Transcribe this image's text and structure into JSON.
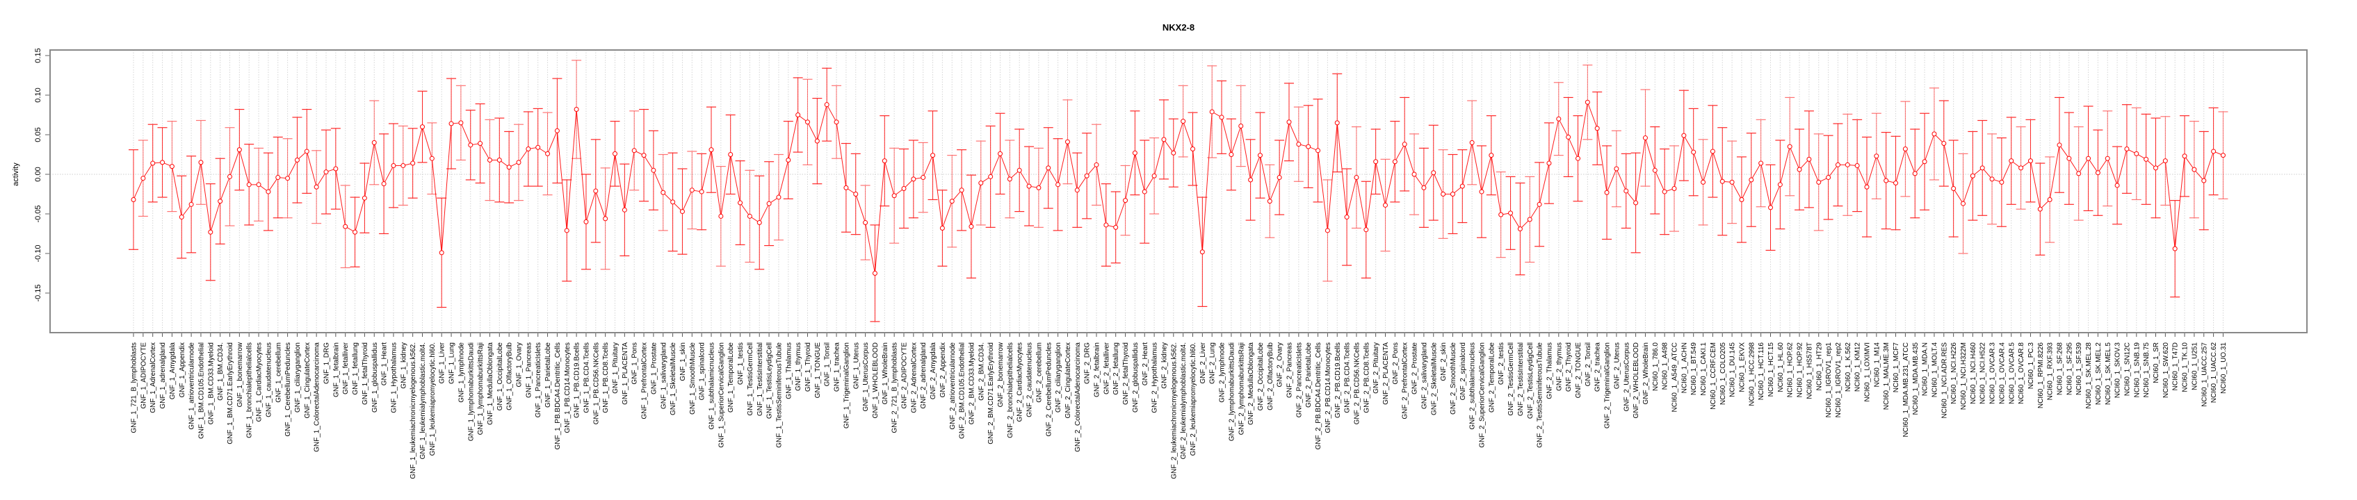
{
  "chart_data": {
    "type": "line",
    "title": "NKX2-8",
    "xlabel": "",
    "ylabel": "activity",
    "ylim": [
      -0.2,
      0.155
    ],
    "yticks": [
      "-0.15",
      "-0.10",
      "-0.05",
      "0.00",
      "0.05",
      "0.10",
      "0.15"
    ],
    "ytick_values": [
      -0.15,
      -0.1,
      -0.05,
      0.0,
      0.05,
      0.1,
      0.15
    ],
    "grid": "dotted vertical at each category, dotted horizontal at 0",
    "series_color": "#ff0000",
    "categories": [
      "GNF_1_721_B_lymphoblasts",
      "GNF_1_ADIPOCYTE",
      "GNF_1_AdrenalCortex",
      "GNF_1_adrenalgland",
      "GNF_1_Amygdala",
      "GNF_1_Appendix",
      "GNF_1_atrioventricularnode",
      "GNF_1_BM.CD105.Endothelial",
      "GNF_1_BM.CD33.Myeloid",
      "GNF_1_BM.CD34.",
      "GNF_1_BM.CD71.EarlyErythroid",
      "GNF_1_bonemarrow",
      "GNF_1_bronchialepithelialcells",
      "GNF_1_CardiacMyocytes",
      "GNF_1_caudatenucleus",
      "GNF_1_cerebellum",
      "GNF_1_CerebellumPeduncles",
      "GNF_1_ciliaryganglion",
      "GNF_1_CingulateCortex",
      "GNF_1_ColorectalAdenocarcinoma",
      "GNF_1_DRG",
      "GNF_1_fetalbrain",
      "GNF_1_fetalliver",
      "GNF_1_fetallung",
      "GNF_1_fetalThyroid",
      "GNF_1_globuspallidus",
      "GNF_1_Heart",
      "GNF_1_Hypothalamus",
      "GNF_1_kidney",
      "GNF_1_leukemiachronicmyelogenous.k562.",
      "GNF_1_leukemialymphoblastic.molt4.",
      "GNF_1_leukemiapromyelocytic.hl60.",
      "GNF_1_Liver",
      "GNF_1_Lung",
      "GNF_1_lymphnode",
      "GNF_1_lymphomaburkittsDaudi",
      "GNF_1_lymphomaburkittsRaji",
      "GNF_1_MedullaOblongata",
      "GNF_1_OccipitalLobe",
      "GNF_1_OlfactoryBulb",
      "GNF_1_Ovary",
      "GNF_1_Pancreas",
      "GNF_1_PancreaticIslets",
      "GNF_1_ParietalLobe",
      "GNF_1_PB.BDCA4.Dentritic_Cells",
      "GNF_1_PB.CD14.Monocytes",
      "GNF_1_PB.CD19.Bcells",
      "GNF_1_PB.CD4.Tcells",
      "GNF_1_PB.CD56.NKCells",
      "GNF_1_PB.CD8.Tcells",
      "GNF_1_Pituitary",
      "GNF_1_PLACENTA",
      "GNF_1_Pons",
      "GNF_1_PrefrontalCortex",
      "GNF_1_Prostate",
      "GNF_1_salivarygland",
      "GNF_1_SkeletalMuscle",
      "GNF_1_skin",
      "GNF_1_SmoothMuscle",
      "GNF_1_spinalcord",
      "GNF_1_subthalamicnucleus",
      "GNF_1_SuperiorCervicalGanglion",
      "GNF_1_TemporalLobe",
      "GNF_1_testis",
      "GNF_1_TestisGermCell",
      "GNF_1_TestisInterstitial",
      "GNF_1_TestisLeydigCell",
      "GNF_1_TestisSeminiferousTubule",
      "GNF_1_Thalamus",
      "GNF_1_thymus",
      "GNF_1_Thyroid",
      "GNF_1_TONGUE",
      "GNF_1_Tonsil",
      "GNF_1_trachea",
      "GNF_1_TrigeminalGanglion",
      "GNF_1_Uterus",
      "GNF_1_UterusCorpus",
      "GNF_1_WHOLEBLOOD",
      "GNF_1_WholeBrain",
      "GNF_2_721_B_lymphoblasts",
      "GNF_2_ADIPOCYTE",
      "GNF_2_AdrenalCortex",
      "GNF_2_adrenalgland",
      "GNF_2_Amygdala",
      "GNF_2_Appendix",
      "GNF_2_atrioventricularnode",
      "GNF_2_BM.CD105.Endothelial",
      "GNF_2_BM.CD33.Myeloid",
      "GNF_2_BM.CD34.",
      "GNF_2_BM.CD71.EarlyErythroid",
      "GNF_2_bonemarrow",
      "GNF_2_bronchialepithelialcells",
      "GNF_2_CardiacMyocytes",
      "GNF_2_caudatenucleus",
      "GNF_2_cerebellum",
      "GNF_2_CerebellumPeduncles",
      "GNF_2_ciliaryganglion",
      "GNF_2_CingulateCortex",
      "GNF_2_ColorectalAdenocarcinoma",
      "GNF_2_DRG",
      "GNF_2_fetalbrain",
      "GNF_2_fetalliver",
      "GNF_2_fetallung",
      "GNF_2_fetalThyroid",
      "GNF_2_globuspallidus",
      "GNF_2_Heart",
      "GNF_2_Hypothalamus",
      "GNF_2_kidney",
      "GNF_2_leukemiachronicmyelogenous.k562.",
      "GNF_2_leukemialymphoblastic.molt4.",
      "GNF_2_leukemiapromyelocytic.hl60.",
      "GNF_2_Liver",
      "GNF_2_Lung",
      "GNF_2_lymphnode",
      "GNF_2_lymphomaburkittsDaudi",
      "GNF_2_lymphomaburkittsRaji",
      "GNF_2_MedullaOblongata",
      "GNF_2_OccipitalLobe",
      "GNF_2_OlfactoryBulb",
      "GNF_2_Ovary",
      "GNF_2_Pancreas",
      "GNF_2_PancreaticIslets",
      "GNF_2_ParietalLobe",
      "GNF_2_PB.BDCA4.Dentritic_Cells",
      "GNF_2_PB.CD14.Monocytes",
      "GNF_2_PB.CD19.Bcells",
      "GNF_2_PB.CD4.Tcells",
      "GNF_2_PB.CD56.NKCells",
      "GNF_2_PB.CD8.Tcells",
      "GNF_2_Pituitary",
      "GNF_2_PLACENTA",
      "GNF_2_Pons",
      "GNF_2_PrefrontalCortex",
      "GNF_2_Prostate",
      "GNF_2_salivarygland",
      "GNF_2_SkeletalMuscle",
      "GNF_2_skin",
      "GNF_2_SmoothMuscle",
      "GNF_2_spinalcord",
      "GNF_2_subthalamicnucleus",
      "GNF_2_SuperiorCervicalGanglion",
      "GNF_2_TemporalLobe",
      "GNF_2_testis",
      "GNF_2_TestisGermCell",
      "GNF_2_TestisInterstitial",
      "GNF_2_TestisLeydigCell",
      "GNF_2_TestisSeminiferousTubule",
      "GNF_2_Thalamus",
      "GNF_2_thymus",
      "GNF_2_Thyroid",
      "GNF_2_TONGUE",
      "GNF_2_Tonsil",
      "GNF_2_trachea",
      "GNF_2_TrigeminalGanglion",
      "GNF_2_Uterus",
      "GNF_2_UterusCorpus",
      "GNF_2_WHOLEBLOOD",
      "GNF_2_WholeBrain",
      "NCI60_1_786.0",
      "NCI60_1_A498",
      "NCI60_1_A549_ATCC",
      "NCI60_1_ACHN",
      "NCI60_1_BT.549",
      "NCI60_1_CAKI.1",
      "NCI60_1_CCRF.CEM",
      "NCI60_1_COLO205",
      "NCI60_1_DU.145",
      "NCI60_1_EKVX",
      "NCI60_1_HCC.2998",
      "NCI60_1_HCT.116",
      "NCI60_1_HCT.15",
      "NCI60_1_HL.60",
      "NCI60_1_HOP.62",
      "NCI60_1_HOP.92",
      "NCI60_1_HS578T",
      "NCI60_1_HT29",
      "NCI60_1_IGROV1_rep1",
      "NCI60_1_IGROV1_rep2",
      "NCI60_1_K.562",
      "NCI60_1_KM12",
      "NCI60_1_LOXIMVI",
      "NCI60_1_M14",
      "NCI60_1_MALME.3M",
      "NCI60_1_MCF7",
      "NCI60_1_MDA.MB.231_ATCC",
      "NCI60_1_MDA.MB.435",
      "NCI60_1_MDA.N",
      "NCI60_1_MOLT.4",
      "NCI60_1_NCI.ADR.RES",
      "NCI60_1_NCI.H226",
      "NCI60_1_NCI.H322M",
      "NCI60_1_NCI.H460",
      "NCI60_1_NCI.H522",
      "NCI60_1_OVCAR.3",
      "NCI60_1_OVCAR.4",
      "NCI60_1_OVCAR.5",
      "NCI60_1_OVCAR.8",
      "NCI60_1_PC.3",
      "NCI60_1_RPMI.8226",
      "NCI60_1_RXF.393",
      "NCI60_1_SF.268",
      "NCI60_1_SF.295",
      "NCI60_1_SF.539",
      "NCI60_1_SK.MEL.28",
      "NCI60_1_SK.MEL.2",
      "NCI60_1_SK.MEL.5",
      "NCI60_1_SKOV.3",
      "NCI60_1_SN12C",
      "NCI60_1_SNB.19",
      "NCI60_1_SNB.75",
      "NCI60_1_SR",
      "NCI60_1_SW.620",
      "NCI60_1_T47D",
      "NCI60_1_TK.10",
      "NCI60_1_U251",
      "NCI60_1_UACC.257",
      "NCI60_1_UACC.62",
      "NCI60_1_UO.31"
    ],
    "values": [
      -0.032,
      -0.005,
      0.014,
      0.015,
      0.01,
      -0.054,
      -0.038,
      0.015,
      -0.073,
      -0.034,
      -0.003,
      0.031,
      -0.013,
      -0.013,
      -0.022,
      -0.004,
      -0.005,
      0.018,
      0.029,
      -0.016,
      0.003,
      0.007,
      -0.066,
      -0.073,
      -0.03,
      0.04,
      -0.012,
      0.011,
      0.011,
      0.014,
      0.06,
      0.02,
      -0.099,
      0.064,
      0.065,
      0.037,
      0.039,
      0.018,
      0.018,
      0.009,
      0.015,
      0.032,
      0.034,
      0.026,
      0.055,
      -0.071,
      0.082,
      -0.06,
      -0.021,
      -0.056,
      0.026,
      -0.045,
      0.03,
      0.024,
      0.005,
      -0.023,
      -0.035,
      -0.047,
      -0.02,
      -0.022,
      0.031,
      -0.053,
      0.025,
      -0.036,
      -0.053,
      -0.061,
      -0.037,
      -0.029,
      0.018,
      0.075,
      0.066,
      0.042,
      0.088,
      0.066,
      -0.017,
      -0.025,
      -0.061,
      -0.125,
      0.017,
      -0.027,
      -0.018,
      -0.006,
      -0.004,
      0.024,
      -0.068,
      -0.034,
      -0.02,
      -0.066,
      -0.011,
      -0.003,
      0.026,
      -0.006,
      0.005,
      -0.015,
      -0.017,
      0.008,
      -0.013,
      0.041,
      -0.02,
      -0.002,
      0.012,
      -0.064,
      -0.067,
      -0.033,
      0.027,
      -0.022,
      -0.002,
      0.044,
      0.027,
      0.067,
      0.032,
      -0.098,
      0.079,
      0.072,
      0.025,
      0.061,
      -0.007,
      0.024,
      -0.034,
      -0.004,
      0.066,
      0.038,
      0.035,
      0.03,
      -0.071,
      0.065,
      -0.054,
      -0.004,
      -0.07,
      0.016,
      -0.039,
      0.016,
      0.038,
      0.0,
      -0.017,
      0.002,
      -0.025,
      -0.025,
      -0.015,
      0.04,
      -0.022,
      0.024,
      -0.051,
      -0.049,
      -0.069,
      -0.057,
      -0.038,
      0.014,
      0.07,
      0.047,
      0.02,
      0.091,
      0.058,
      -0.023,
      0.007,
      -0.021,
      -0.036,
      0.046,
      0.005,
      -0.022,
      -0.018,
      0.049,
      0.028,
      -0.01,
      0.029,
      -0.009,
      -0.01,
      -0.032,
      -0.007,
      0.014,
      -0.042,
      -0.013,
      0.035,
      0.006,
      0.019,
      -0.01,
      -0.004,
      0.012,
      0.012,
      0.011,
      -0.016,
      0.023,
      -0.008,
      -0.011,
      0.032,
      0.001,
      0.016,
      0.051,
      0.039,
      -0.018,
      -0.037,
      -0.002,
      0.008,
      -0.006,
      -0.01,
      0.017,
      0.008,
      0.017,
      -0.044,
      -0.032,
      0.037,
      0.02,
      0.001,
      0.02,
      0.002,
      0.02,
      -0.014,
      0.032,
      0.026,
      0.019,
      0.008,
      0.017,
      -0.094,
      0.023,
      0.006,
      -0.008,
      0.029,
      0.024
    ],
    "errors": [
      0.063,
      0.048,
      0.049,
      0.044,
      0.057,
      0.052,
      0.061,
      0.053,
      0.061,
      0.054,
      0.062,
      0.051,
      0.051,
      0.046,
      0.049,
      0.051,
      0.05,
      0.054,
      0.053,
      0.046,
      0.053,
      0.051,
      0.052,
      0.044,
      0.044,
      0.053,
      0.063,
      0.053,
      0.05,
      0.044,
      0.045,
      0.045,
      0.069,
      0.057,
      0.047,
      0.044,
      0.05,
      0.051,
      0.053,
      0.045,
      0.048,
      0.047,
      0.049,
      0.052,
      0.066,
      0.064,
      0.062,
      0.06,
      0.065,
      0.064,
      0.041,
      0.058,
      0.05,
      0.058,
      0.05,
      0.048,
      0.062,
      0.054,
      0.049,
      0.048,
      0.054,
      0.063,
      0.05,
      0.053,
      0.058,
      0.059,
      0.053,
      0.054,
      0.049,
      0.047,
      0.054,
      0.054,
      0.046,
      0.046,
      0.056,
      0.051,
      0.047,
      0.061,
      0.057,
      0.06,
      0.05,
      0.049,
      0.044,
      0.056,
      0.048,
      0.058,
      0.051,
      0.065,
      0.053,
      0.064,
      0.051,
      0.049,
      0.052,
      0.05,
      0.05,
      0.051,
      0.058,
      0.053,
      0.047,
      0.054,
      0.051,
      0.052,
      0.045,
      0.044,
      0.053,
      0.065,
      0.048,
      0.05,
      0.043,
      0.045,
      0.046,
      0.069,
      0.058,
      0.046,
      0.045,
      0.051,
      0.051,
      0.054,
      0.046,
      0.047,
      0.049,
      0.047,
      0.052,
      0.065,
      0.064,
      0.062,
      0.061,
      0.064,
      0.061,
      0.041,
      0.058,
      0.051,
      0.059,
      0.051,
      0.05,
      0.06,
      0.056,
      0.05,
      0.046,
      0.053,
      0.058,
      0.05,
      0.054,
      0.046,
      0.058,
      0.054,
      0.053,
      0.051,
      0.046,
      0.05,
      0.054,
      0.047,
      0.046,
      0.059,
      0.048,
      0.047,
      0.063,
      0.061,
      0.055,
      0.054,
      0.054,
      0.057,
      0.055,
      0.054,
      0.058,
      0.068,
      0.052,
      0.054,
      0.059,
      0.055,
      0.054,
      0.056,
      0.062,
      0.051,
      0.061,
      0.061,
      0.053,
      0.052,
      0.064,
      0.058,
      0.063,
      0.054,
      0.061,
      0.059,
      0.06,
      0.056,
      0.061,
      0.058,
      0.054,
      0.061,
      0.063,
      0.056,
      0.06,
      0.057,
      0.056,
      0.055,
      0.052,
      0.052,
      0.058,
      0.054,
      0.06,
      0.058,
      0.059,
      0.066,
      0.054,
      0.06,
      0.049,
      0.056,
      0.058,
      0.057,
      0.063,
      0.056,
      0.061,
      0.051,
      0.061,
      0.062,
      0.055,
      0.055
    ]
  }
}
